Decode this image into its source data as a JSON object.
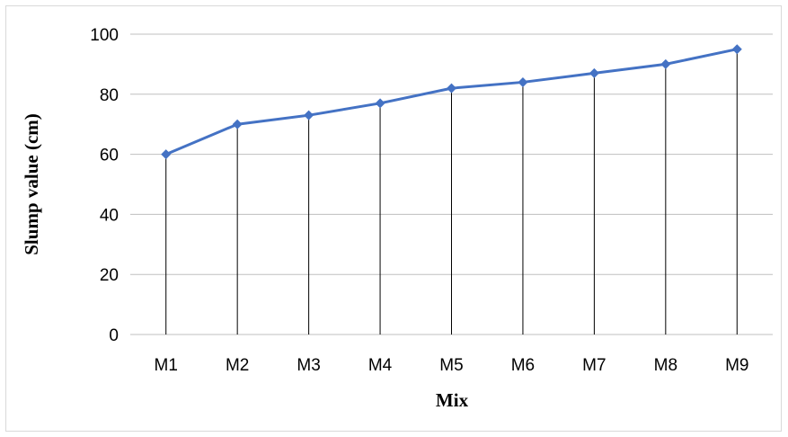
{
  "chart_data": {
    "type": "line",
    "categories": [
      "M1",
      "M2",
      "M3",
      "M4",
      "M5",
      "M6",
      "M7",
      "M8",
      "M9"
    ],
    "series": [
      {
        "values": [
          60,
          70,
          73,
          77,
          82,
          84,
          87,
          90,
          95
        ]
      }
    ],
    "xlabel": "Mix",
    "ylabel": "Slump value (cm)",
    "ylim": [
      0,
      100
    ],
    "yticks": [
      "0",
      "20",
      "40",
      "60",
      "80",
      "100"
    ],
    "grid": true,
    "drop_lines": true,
    "markers": "diamond",
    "colors": {
      "line": "#4472C4",
      "grid": "#bfbfbf",
      "drop_line": "#000000"
    }
  }
}
